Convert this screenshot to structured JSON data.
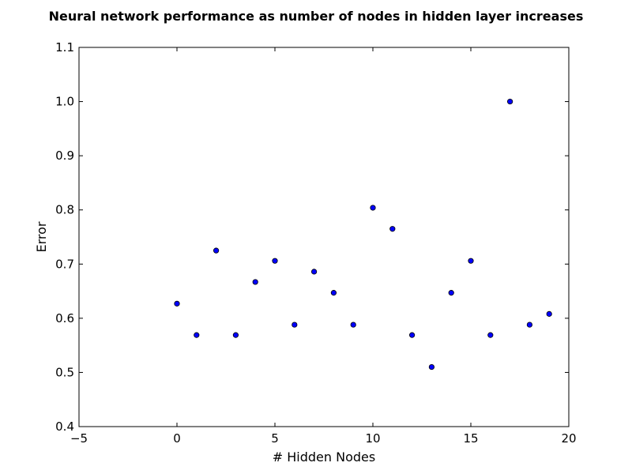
{
  "chart_data": {
    "type": "scatter",
    "title": "Neural network performance as number of nodes in hidden layer increases",
    "xlabel": "# Hidden Nodes",
    "ylabel": "Error",
    "xlim": [
      -5,
      20
    ],
    "ylim": [
      0.4,
      1.1
    ],
    "xticks": [
      -5,
      0,
      5,
      10,
      15,
      20
    ],
    "xtick_labels": [
      "−5",
      "0",
      "5",
      "10",
      "15",
      "20"
    ],
    "yticks": [
      0.4,
      0.5,
      0.6,
      0.7,
      0.8,
      0.9,
      1.0,
      1.1
    ],
    "ytick_labels": [
      "0.4",
      "0.5",
      "0.6",
      "0.7",
      "0.8",
      "0.9",
      "1.0",
      "1.1"
    ],
    "grid": false,
    "colors": {
      "marker_fill": "#0000ff",
      "marker_edge": "#000000",
      "axes": "#000000",
      "background": "#ffffff"
    },
    "points": [
      {
        "x": 0,
        "y": 0.627
      },
      {
        "x": 1,
        "y": 0.569
      },
      {
        "x": 2,
        "y": 0.725
      },
      {
        "x": 3,
        "y": 0.569
      },
      {
        "x": 4,
        "y": 0.667
      },
      {
        "x": 5,
        "y": 0.706
      },
      {
        "x": 6,
        "y": 0.588
      },
      {
        "x": 7,
        "y": 0.686
      },
      {
        "x": 8,
        "y": 0.647
      },
      {
        "x": 9,
        "y": 0.588
      },
      {
        "x": 10,
        "y": 0.804
      },
      {
        "x": 11,
        "y": 0.765
      },
      {
        "x": 12,
        "y": 0.569
      },
      {
        "x": 13,
        "y": 0.51
      },
      {
        "x": 14,
        "y": 0.647
      },
      {
        "x": 15,
        "y": 0.706
      },
      {
        "x": 16,
        "y": 0.569
      },
      {
        "x": 17,
        "y": 1.0
      },
      {
        "x": 18,
        "y": 0.588
      },
      {
        "x": 19,
        "y": 0.608
      }
    ]
  }
}
